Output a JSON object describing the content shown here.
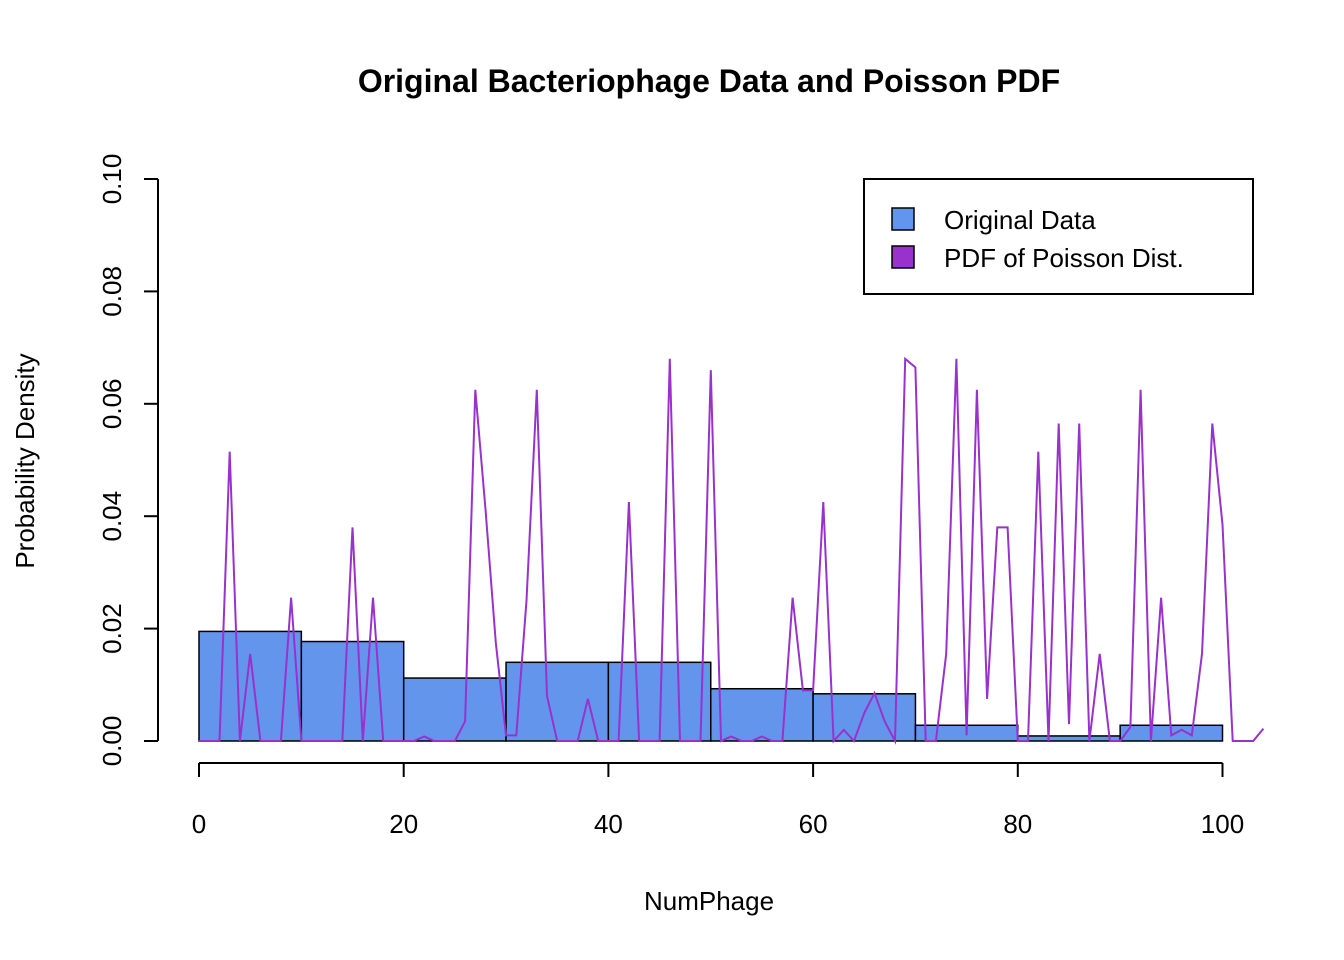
{
  "chart_data": {
    "type": "bar",
    "title": "Original Bacteriophage Data and Poisson PDF",
    "xlabel": "NumPhage",
    "ylabel": "Probability Density",
    "xlim": [
      0,
      104
    ],
    "ylim": [
      0,
      0.1
    ],
    "x_ticks": [
      0,
      20,
      40,
      60,
      80,
      100
    ],
    "x_tick_labels": [
      "0",
      "20",
      "40",
      "60",
      "80",
      "100"
    ],
    "y_ticks": [
      0,
      0.02,
      0.04,
      0.06,
      0.08,
      0.1
    ],
    "y_tick_labels": [
      "0.00",
      "0.02",
      "0.04",
      "0.06",
      "0.08",
      "0.10"
    ],
    "grid": false,
    "legend_position": "top-right",
    "series": [
      {
        "name": "Original Data",
        "type": "histogram",
        "color": "#6495ED",
        "bins": [
          {
            "start": 0,
            "end": 10,
            "density": 0.0195
          },
          {
            "start": 10,
            "end": 20,
            "density": 0.0177
          },
          {
            "start": 20,
            "end": 30,
            "density": 0.0112
          },
          {
            "start": 30,
            "end": 40,
            "density": 0.014
          },
          {
            "start": 40,
            "end": 50,
            "density": 0.014
          },
          {
            "start": 50,
            "end": 60,
            "density": 0.0093
          },
          {
            "start": 60,
            "end": 70,
            "density": 0.0084
          },
          {
            "start": 70,
            "end": 80,
            "density": 0.0028
          },
          {
            "start": 80,
            "end": 90,
            "density": 0.0009
          },
          {
            "start": 90,
            "end": 100,
            "density": 0.0028
          }
        ]
      },
      {
        "name": "PDF of Poisson Dist.",
        "type": "line",
        "color": "#9932CC",
        "x": [
          0,
          1,
          2,
          3,
          4,
          5,
          6,
          7,
          8,
          9,
          10,
          11,
          12,
          13,
          14,
          15,
          16,
          17,
          18,
          19,
          20,
          21,
          22,
          23,
          24,
          25,
          26,
          27,
          28,
          29,
          30,
          31,
          32,
          33,
          34,
          35,
          36,
          37,
          38,
          39,
          40,
          41,
          42,
          43,
          44,
          45,
          46,
          47,
          48,
          49,
          50,
          51,
          52,
          53,
          54,
          55,
          56,
          57,
          58,
          59,
          60,
          61,
          62,
          63,
          64,
          65,
          66,
          67,
          68,
          69,
          70,
          71,
          72,
          73,
          74,
          75,
          76,
          77,
          78,
          79,
          80,
          81,
          82,
          83,
          84,
          85,
          86,
          87,
          88,
          89,
          90,
          91,
          92,
          93,
          94,
          95,
          96,
          97,
          98,
          99,
          100,
          101,
          102,
          103,
          104
        ],
        "y": [
          0,
          0,
          0,
          0.0515,
          0,
          0.0155,
          0,
          0,
          0,
          0.0255,
          0,
          0,
          0,
          0,
          0,
          0.038,
          0,
          0.0255,
          0,
          0,
          0,
          0,
          0.0008,
          0,
          0,
          0,
          0.0035,
          0.0625,
          0.041,
          0.0175,
          0.001,
          0.001,
          0.025,
          0.0625,
          0.008,
          0,
          0,
          0,
          0.0075,
          0,
          0,
          0,
          0.0425,
          0,
          0,
          0,
          0.068,
          0,
          0,
          0,
          0.066,
          0,
          0.0008,
          0,
          0,
          0.0008,
          0,
          0,
          0.0255,
          0.009,
          0.009,
          0.0425,
          0,
          0.002,
          0,
          0.005,
          0.0085,
          0.0035,
          0,
          0.068,
          0.0665,
          0,
          0,
          0.0155,
          0.068,
          0.001,
          0.0625,
          0.0075,
          0.038,
          0.038,
          0,
          0,
          0.0515,
          0,
          0.0565,
          0.003,
          0.0565,
          0,
          0.0155,
          0,
          0,
          0.0025,
          0.0625,
          0,
          0.0255,
          0.001,
          0.002,
          0.001,
          0.0155,
          0.0565,
          0.0385,
          0,
          0,
          0,
          0.0022
        ]
      }
    ]
  }
}
